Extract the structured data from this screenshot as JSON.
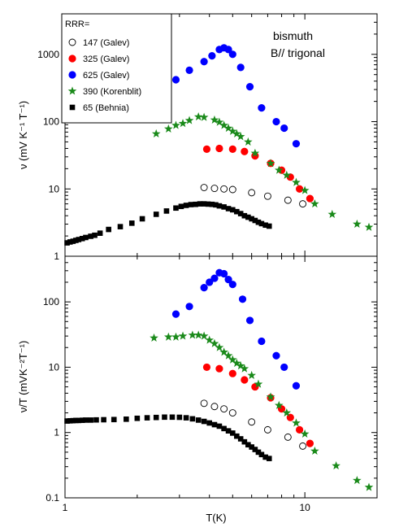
{
  "chart_data": [
    {
      "type": "scatter",
      "panel": "top",
      "xscale": "log",
      "yscale": "log",
      "xlim": [
        1,
        20
      ],
      "ylim": [
        1,
        4000
      ],
      "ylabel": "ν (mV K⁻¹ T⁻¹)",
      "yticks": [
        {
          "v": 1,
          "label": "1"
        },
        {
          "v": 10,
          "label": "10"
        },
        {
          "v": 100,
          "label": "100"
        },
        {
          "v": 1000,
          "label": "1000"
        }
      ],
      "annotations": [
        "bismuth",
        "B// trigonal"
      ],
      "legend": {
        "title": "RRR=",
        "placement": "top-left"
      },
      "series": [
        {
          "name": "147 (Galev)",
          "marker": "open-circle",
          "color": "#000000",
          "x": [
            3.8,
            4.2,
            4.6,
            5.0,
            6.0,
            7.0,
            8.5,
            9.8
          ],
          "y": [
            10.5,
            10.2,
            10.0,
            9.8,
            8.8,
            7.8,
            6.8,
            6.0
          ]
        },
        {
          "name": "325 (Galev)",
          "marker": "circle",
          "color": "#ff0000",
          "x": [
            3.9,
            4.4,
            5.0,
            5.6,
            6.2,
            7.2,
            8.0,
            8.7,
            9.5,
            10.5
          ],
          "y": [
            39,
            40,
            39,
            36,
            31,
            24,
            19,
            15,
            10,
            7.2
          ]
        },
        {
          "name": "625 (Galev)",
          "marker": "circle",
          "color": "#0000ff",
          "x": [
            2.9,
            3.3,
            3.8,
            4.1,
            4.4,
            4.6,
            4.8,
            5.0,
            5.4,
            5.9,
            6.6,
            7.6,
            8.2,
            9.2
          ],
          "y": [
            420,
            580,
            780,
            950,
            1180,
            1250,
            1180,
            1000,
            640,
            330,
            160,
            100,
            80,
            47
          ]
        },
        {
          "name": "390 (Korenblit)",
          "marker": "star",
          "color": "#1a8a1a",
          "x": [
            2.4,
            2.7,
            2.9,
            3.1,
            3.3,
            3.6,
            3.8,
            4.2,
            4.4,
            4.6,
            4.8,
            5.0,
            5.2,
            5.4,
            5.8,
            6.2,
            7.2,
            7.8,
            8.4,
            9.2,
            10.0,
            11.0,
            13.0,
            16.5,
            18.5
          ],
          "y": [
            66,
            78,
            88,
            94,
            104,
            118,
            116,
            106,
            98,
            88,
            80,
            72,
            66,
            60,
            50,
            34,
            24,
            19,
            16,
            12.5,
            9.5,
            6.0,
            4.2,
            3.0,
            2.7
          ]
        },
        {
          "name": "65  (Behnia)",
          "marker": "square",
          "color": "#000000",
          "x": [
            1.02,
            1.05,
            1.08,
            1.11,
            1.14,
            1.18,
            1.22,
            1.28,
            1.33,
            1.4,
            1.52,
            1.7,
            1.9,
            2.1,
            2.4,
            2.65,
            2.9,
            3.05,
            3.2,
            3.35,
            3.5,
            3.65,
            3.8,
            3.95,
            4.1,
            4.25,
            4.4,
            4.6,
            4.8,
            5.0,
            5.2,
            5.4,
            5.6,
            5.8,
            6.0,
            6.2,
            6.4,
            6.6,
            6.85,
            7.1
          ],
          "y": [
            1.58,
            1.63,
            1.67,
            1.72,
            1.77,
            1.83,
            1.9,
            1.98,
            2.05,
            2.2,
            2.5,
            2.75,
            3.1,
            3.6,
            4.2,
            4.7,
            5.2,
            5.5,
            5.7,
            5.85,
            5.9,
            6.0,
            6.0,
            5.95,
            5.9,
            5.8,
            5.6,
            5.4,
            5.1,
            4.9,
            4.6,
            4.3,
            4.0,
            3.8,
            3.6,
            3.4,
            3.2,
            3.05,
            2.9,
            2.8
          ]
        }
      ]
    },
    {
      "type": "scatter",
      "panel": "bottom",
      "xscale": "log",
      "yscale": "log",
      "xlim": [
        1,
        20
      ],
      "ylim": [
        0.1,
        500
      ],
      "xlabel": "T(K)",
      "ylabel": "ν/T (mVK⁻²T⁻¹)",
      "xticks": [
        {
          "v": 1,
          "label": "1"
        },
        {
          "v": 10,
          "label": "10"
        }
      ],
      "yticks": [
        {
          "v": 0.1,
          "label": "0.1"
        },
        {
          "v": 1,
          "label": "1"
        },
        {
          "v": 10,
          "label": "10"
        },
        {
          "v": 100,
          "label": "100"
        }
      ],
      "series": [
        {
          "name": "147 (Galev)",
          "marker": "open-circle",
          "color": "#000000",
          "x": [
            3.8,
            4.2,
            4.6,
            5.0,
            6.0,
            7.0,
            8.5,
            9.8
          ],
          "y": [
            2.8,
            2.5,
            2.3,
            2.0,
            1.45,
            1.1,
            0.85,
            0.62
          ]
        },
        {
          "name": "325 (Galev)",
          "marker": "circle",
          "color": "#ff0000",
          "x": [
            3.9,
            4.4,
            5.0,
            5.6,
            6.2,
            7.2,
            8.0,
            8.7,
            9.5,
            10.5
          ],
          "y": [
            10.0,
            9.5,
            8.0,
            6.4,
            5.0,
            3.4,
            2.3,
            1.7,
            1.1,
            0.68
          ]
        },
        {
          "name": "625 (Galev)",
          "marker": "circle",
          "color": "#0000ff",
          "x": [
            2.9,
            3.3,
            3.8,
            4.0,
            4.2,
            4.4,
            4.6,
            4.8,
            5.0,
            5.5,
            5.9,
            6.6,
            7.6,
            8.2,
            9.2
          ],
          "y": [
            65,
            85,
            165,
            200,
            230,
            280,
            270,
            220,
            185,
            110,
            52,
            25,
            15,
            10,
            5.2
          ]
        },
        {
          "name": "390 (Korenblit)",
          "marker": "star",
          "color": "#1a8a1a",
          "x": [
            2.35,
            2.7,
            2.9,
            3.1,
            3.4,
            3.6,
            3.8,
            4.0,
            4.2,
            4.4,
            4.6,
            4.8,
            5.0,
            5.2,
            5.4,
            5.6,
            6.0,
            6.4,
            7.2,
            7.8,
            8.4,
            9.2,
            10.0,
            11.0,
            13.5,
            16.5,
            18.5
          ],
          "y": [
            28,
            29,
            29,
            30,
            31,
            31,
            30,
            26,
            23,
            20,
            17,
            15,
            13,
            11.5,
            10.5,
            9.5,
            7.5,
            5.5,
            3.5,
            2.6,
            2.0,
            1.4,
            0.95,
            0.52,
            0.31,
            0.185,
            0.145
          ]
        },
        {
          "name": "65  (Behnia)",
          "marker": "square",
          "color": "#000000",
          "x": [
            1.02,
            1.05,
            1.08,
            1.11,
            1.14,
            1.18,
            1.22,
            1.28,
            1.35,
            1.45,
            1.6,
            1.8,
            2.0,
            2.2,
            2.4,
            2.6,
            2.8,
            3.0,
            3.2,
            3.4,
            3.6,
            3.8,
            4.0,
            4.2,
            4.4,
            4.6,
            4.8,
            5.0,
            5.2,
            5.4,
            5.6,
            5.8,
            6.0,
            6.2,
            6.4,
            6.6,
            6.85,
            7.1
          ],
          "y": [
            1.5,
            1.51,
            1.52,
            1.53,
            1.53,
            1.54,
            1.55,
            1.55,
            1.56,
            1.57,
            1.58,
            1.6,
            1.65,
            1.68,
            1.7,
            1.72,
            1.72,
            1.71,
            1.68,
            1.62,
            1.55,
            1.48,
            1.4,
            1.32,
            1.25,
            1.15,
            1.06,
            0.98,
            0.88,
            0.8,
            0.72,
            0.65,
            0.6,
            0.55,
            0.5,
            0.46,
            0.42,
            0.4
          ]
        }
      ]
    }
  ]
}
